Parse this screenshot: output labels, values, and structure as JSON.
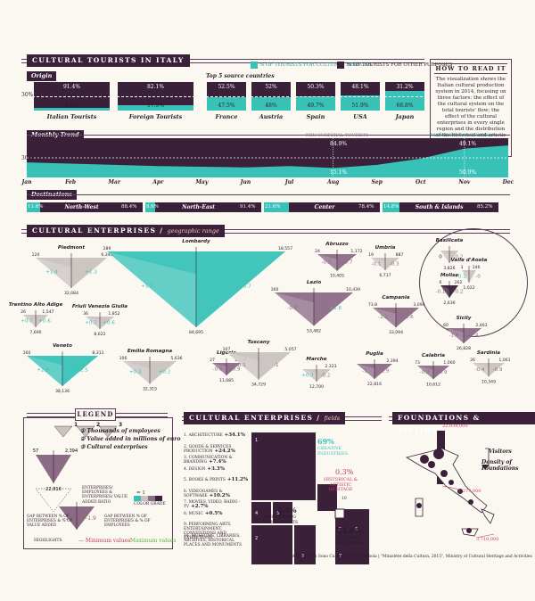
{
  "tourists": {
    "title": "CULTURAL TOURISTS IN ITALY",
    "origin_label": "Origin",
    "top5_label": "Top 5 source countries",
    "legend_cultural": "% OF TOURISTS FOR CULTURAL REASONS",
    "legend_other": "% OF TOURISTS FOR OTHER PURPOSES",
    "axis_30": "30%",
    "origin": [
      {
        "name": "Italian Tourists",
        "top": "91.4%",
        "bottom": "8.6%",
        "cult": 8.6
      },
      {
        "name": "Foreign Tourists",
        "top": "82.1%",
        "bottom": "17.9%",
        "cult": 17.9
      }
    ],
    "countries": [
      {
        "name": "France",
        "top": "52.5%",
        "bottom": "47.5%",
        "cult": 47.5
      },
      {
        "name": "Austria",
        "top": "52%",
        "bottom": "48%",
        "cult": 48
      },
      {
        "name": "Spain",
        "top": "50.3%",
        "bottom": "49.7%",
        "cult": 49.7
      },
      {
        "name": "USA",
        "top": "48.1%",
        "bottom": "51.9%",
        "cult": 51.9
      },
      {
        "name": "Japan",
        "top": "31.2%",
        "bottom": "68.8%",
        "cult": 68.8
      }
    ],
    "monthly_label": "Monthly Trend",
    "min_label": "MIN CULTURAL TOURISM",
    "max_label": "MAX CULTURAL TOURISM",
    "min_top": "84.9%",
    "min_bottom": "15.1%",
    "max_top": "49.1%",
    "max_bottom": "50.9%",
    "months": [
      "Jan",
      "Feb",
      "Mar",
      "Apr",
      "May",
      "Jun",
      "Jul",
      "Aug",
      "Sep",
      "Oct",
      "Nov",
      "Dec"
    ],
    "destinations_label": "Destinations",
    "destinations": [
      {
        "name": "North-West",
        "left": "11.6%",
        "right": "88.4%",
        "cult": 11.6
      },
      {
        "name": "North-East",
        "left": "8.6%",
        "right": "91.4%",
        "cult": 8.6
      },
      {
        "name": "Center",
        "left": "21.6%",
        "right": "78.4%",
        "cult": 21.6
      },
      {
        "name": "South & Islands",
        "left": "14.8%",
        "right": "85.2%",
        "cult": 14.8
      }
    ]
  },
  "howto": {
    "title": "HOW TO READ IT",
    "text": "The visualization shows the Italian cultural production system in 2014, focusing on three factors: the effect of the cultural system on the total tourists' flow; the effect of the cultural enterprises in every single region and the distribution of the historical and artistic heritage in Italy."
  },
  "enterprises": {
    "title": "CULTURAL ENTERPRISES",
    "subtitle": "geographic range",
    "regions": [
      {
        "name": "Piedmont",
        "emp": "120",
        "va": "6,343",
        "ent": "32,084",
        "l": "+1.4",
        "r": "+1.3"
      },
      {
        "name": "Lombardy",
        "emp": "289",
        "va": "18,557",
        "ent": "84,695",
        "l": "+1.7",
        "r": "+5.7"
      },
      {
        "name": "Abruzzo",
        "emp": "24",
        "va": "1,172",
        "ent": "10,405",
        "l": "-0.5",
        "r": "-0.7"
      },
      {
        "name": "Umbria",
        "emp": "19",
        "va": "887",
        "ent": "6,717",
        "l": "-0.1",
        "r": "-0.3"
      },
      {
        "name": "Basilicata",
        "emp": "",
        "va": "",
        "ent": "3,826",
        "l": "0",
        "r": "-0.2"
      },
      {
        "name": "Valle d'Aosta",
        "emp": "3",
        "va": "146",
        "ent": "1,022",
        "l": "+0.1",
        "r": "-0"
      },
      {
        "name": "Molise",
        "emp": "6",
        "va": "262",
        "ent": "2,636",
        "l": "-0.1",
        "r": "-0.2"
      },
      {
        "name": "Trentino Alto Adige",
        "emp": "26",
        "va": "1,547",
        "ent": "7,690",
        "l": "+0.7",
        "r": "+0.6"
      },
      {
        "name": "Friuli Venezia Giulia",
        "emp": "36",
        "va": "1,852",
        "ent": "8,622",
        "l": "+0.7",
        "r": "+0.6"
      },
      {
        "name": "Lazio",
        "emp": "160",
        "va": "10,439",
        "ent": "53,482",
        "l": "-0.6",
        "r": "+1.8"
      },
      {
        "name": "Campania",
        "emp": "73.8",
        "va": "3,094",
        "ent": "33,094",
        "l": "-2.2",
        "r": "-2.6"
      },
      {
        "name": "Sicily",
        "emp": "60",
        "va": "2,463",
        "ent": "26,828",
        "l": "-1.6",
        "r": "-2.4"
      },
      {
        "name": "Veneto",
        "emp": "160",
        "va": "8,311",
        "ent": "38,136",
        "l": "+2.9",
        "r": "+2.5"
      },
      {
        "name": "Emilia Romagna",
        "emp": "106",
        "va": "5,636",
        "ent": "32,315",
        "l": "+0.3",
        "r": "+0.2"
      },
      {
        "name": "Liguria",
        "emp": "27",
        "va": "2,298",
        "ent": "11,685",
        "l": "-0.6",
        "r": "-0.9"
      },
      {
        "name": "Tuscany",
        "emp": "107",
        "va": "5,057",
        "ent": "34,729",
        "l": "-0.1",
        "r": "-1"
      },
      {
        "name": "Marche",
        "emp": "",
        "va": "2,323",
        "ent": "12,700",
        "l": "+0.7",
        "r": "-0.2"
      },
      {
        "name": "Puglia",
        "emp": "",
        "va": "2,394",
        "ent": "22,816",
        "l": "-1",
        "r": "-1.9"
      },
      {
        "name": "Calabria",
        "emp": "73",
        "va": "1,060",
        "ent": "10,612",
        "l": "-0.3",
        "r": "-0.9"
      },
      {
        "name": "Sardinia",
        "emp": "26",
        "va": "1,061",
        "ent": "10,349",
        "l": "-0.4",
        "r": "-0.9"
      }
    ]
  },
  "legend": {
    "title": "LEGEND",
    "emp": "57",
    "va": "2,394",
    "ent": "22,816",
    "item1": "Thousands of employees",
    "item2": "Value added in millions of euro",
    "item3": "Cultural enterprises",
    "ratio": "ENTERPRISES/ EMPLOYEES & ENTERPRISES/ VALUE ADDED RATIO",
    "eq1": "= 1",
    "color_grade": "COLOR GRADE",
    "gap_left": "GAP BETWEEN % OF ENTERPRISES & % OF VALUE ADDED",
    "gap_right": "GAP BETWEEN % OF ENTERPRISES & % OF EMPLOYEES",
    "ex_l": "-1",
    "ex_r": "-1.9",
    "highlights": "HIGHLIGHTS",
    "minv": "Minimum values",
    "maxv": "Maximum values"
  },
  "fields": {
    "title": "CULTURAL ENTERPRISES",
    "subtitle": "fields",
    "items": [
      {
        "n": "1.",
        "name": "ARCHITECTURE",
        "v": "+34.1%"
      },
      {
        "n": "2.",
        "name": "GOODS & SERVICES PRODUCTION",
        "v": "+24.2%"
      },
      {
        "n": "3.",
        "name": "COMMUNICATION & BRANDING",
        "v": "+7.4%"
      },
      {
        "n": "4.",
        "name": "DESIGN",
        "v": "+3.3%"
      },
      {
        "n": "5.",
        "name": "BOOKS & PRINTS",
        "v": "+11.2%"
      },
      {
        "n": "6.",
        "name": "VIDEOGAMES & SOFTWARE",
        "v": "+10.2%"
      },
      {
        "n": "7.",
        "name": "MOVIES, VIDEO, RADIO - TV",
        "v": "+2.7%"
      },
      {
        "n": "8.",
        "name": "MUSIC",
        "v": "+0.5%"
      },
      {
        "n": "9.",
        "name": "PERFORMING ARTS, ENTERTAINMENT, CONVENTIONS AND EXHIBITIONS",
        "v": ""
      },
      {
        "n": "10.",
        "name": "MUSEUMS, LIBRARIES, ARCHIVES, HISTORICAL PLACES AND MONUMENTS",
        "v": ""
      }
    ],
    "creative_pct": "69%",
    "creative": "CREATIVE INDUSTRIES",
    "heritage_pct": "0.3%",
    "heritage": "HISTORICAL & ARTISTIC HERITAGE",
    "heritage_n": "10",
    "perf_pct": "6.1%",
    "perf": "PERFORMING & VISUAL ARTS",
    "cult_pct": "24.6%",
    "cult": "CULTURAL INDUSTRIES"
  },
  "foundations": {
    "title": "FOUNDATIONS & VISITORS",
    "top_value": "22,938,000",
    "mid_value": "1,277,000",
    "low_value": "3,710,000",
    "visitors": "Visitors",
    "density": "Density of Foundations"
  },
  "source": "SOURCE: \"Io Sono Cultura, 2014\" Symbola | \"Ministère della Cultura, 2015\", Ministry of Cultural Heritage and Activities",
  "colors": {
    "dark": "#3a2038",
    "teal": "#38c2b7",
    "mauve": "#8c6c85",
    "grey": "#c9c2bf"
  }
}
